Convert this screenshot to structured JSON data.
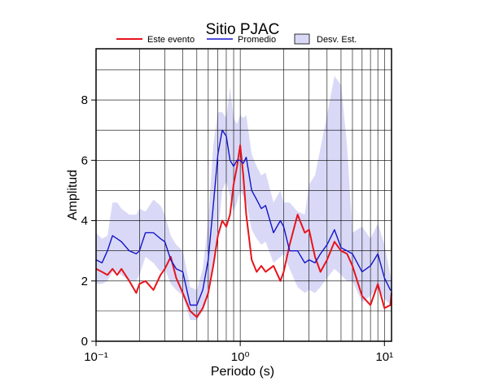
{
  "chart_data": {
    "type": "line",
    "title": "Sitio PJAC",
    "xlabel": "Periodo (s)",
    "ylabel": "Amplitud",
    "xscale": "log",
    "xlim": [
      0.1,
      11.2
    ],
    "ylim": [
      0,
      9.7
    ],
    "xticks": [
      {
        "value": 0.1,
        "label": "10⁻¹"
      },
      {
        "value": 1,
        "label": "10⁰"
      },
      {
        "value": 10,
        "label": "10¹"
      }
    ],
    "xminor": [
      0.2,
      0.3,
      0.4,
      0.5,
      0.6,
      0.7,
      0.8,
      0.9,
      2,
      3,
      4,
      5,
      6,
      7,
      8,
      9
    ],
    "yticks": [
      0,
      2,
      4,
      6,
      8
    ],
    "yminor": [
      1,
      3,
      5,
      7,
      9
    ],
    "grid": true,
    "x": [
      0.1,
      0.11,
      0.12,
      0.13,
      0.14,
      0.15,
      0.17,
      0.19,
      0.2,
      0.22,
      0.25,
      0.28,
      0.3,
      0.33,
      0.36,
      0.4,
      0.45,
      0.5,
      0.55,
      0.6,
      0.65,
      0.7,
      0.75,
      0.8,
      0.85,
      0.9,
      0.95,
      1.0,
      1.05,
      1.1,
      1.2,
      1.3,
      1.4,
      1.5,
      1.7,
      1.9,
      2.0,
      2.2,
      2.5,
      2.8,
      3.0,
      3.3,
      3.6,
      4.0,
      4.5,
      5.0,
      5.5,
      6.0,
      7.0,
      8.0,
      9.0,
      10,
      11,
      11.2
    ],
    "band": {
      "name": "Desv. Est.",
      "color": "#d9d9f7",
      "upper": [
        3.6,
        3.4,
        3.5,
        4.6,
        4.6,
        4.4,
        4.2,
        4.2,
        4.4,
        4.3,
        4.7,
        4.5,
        4.2,
        3.5,
        3.2,
        3.0,
        1.8,
        1.7,
        2.4,
        4.0,
        6.5,
        7.6,
        7.6,
        7.4,
        8.4,
        7.4,
        7.2,
        7.5,
        7.4,
        7.5,
        6.2,
        5.8,
        5.5,
        5.6,
        4.6,
        5.0,
        4.6,
        4.6,
        4.3,
        4.2,
        5.2,
        5.5,
        6.4,
        7.5,
        8.8,
        8.5,
        6.5,
        3.6,
        3.8,
        3.4,
        3.9,
        3.2,
        2.2,
        2.0
      ],
      "lower": [
        1.9,
        1.9,
        2.0,
        2.3,
        2.3,
        2.2,
        2.0,
        2.0,
        2.2,
        2.8,
        2.6,
        2.3,
        2.4,
        1.9,
        1.7,
        1.5,
        0.7,
        0.7,
        1.0,
        1.5,
        2.4,
        3.5,
        5.0,
        5.3,
        4.8,
        4.3,
        4.6,
        5.0,
        4.8,
        4.6,
        3.7,
        3.4,
        3.2,
        3.3,
        2.6,
        2.8,
        2.9,
        2.4,
        1.8,
        1.6,
        1.7,
        1.6,
        1.8,
        2.1,
        2.4,
        2.2,
        2.0,
        2.0,
        1.3,
        1.5,
        1.8,
        1.4,
        1.2,
        1.3
      ]
    },
    "series": [
      {
        "name": "Este evento",
        "color": "#e8141c",
        "values": [
          2.4,
          2.3,
          2.2,
          2.4,
          2.2,
          2.4,
          2.0,
          1.6,
          1.9,
          2.0,
          1.7,
          2.2,
          2.4,
          2.8,
          2.1,
          1.6,
          1.0,
          0.8,
          1.1,
          1.6,
          2.5,
          3.5,
          4.0,
          3.8,
          4.2,
          5.2,
          5.8,
          6.5,
          5.5,
          4.2,
          2.7,
          2.3,
          2.5,
          2.3,
          2.5,
          2.0,
          2.3,
          3.2,
          4.2,
          3.6,
          3.7,
          2.8,
          2.3,
          2.7,
          3.3,
          3.0,
          2.9,
          2.5,
          1.5,
          1.2,
          1.9,
          1.1,
          1.2,
          1.6
        ]
      },
      {
        "name": "Promedio",
        "color": "#1414c8",
        "values": [
          2.7,
          2.6,
          3.0,
          3.5,
          3.4,
          3.3,
          3.0,
          2.9,
          3.0,
          3.6,
          3.6,
          3.4,
          3.3,
          2.7,
          2.4,
          2.3,
          1.2,
          1.2,
          1.7,
          2.7,
          4.5,
          6.2,
          7.0,
          6.8,
          6.0,
          5.8,
          6.0,
          6.0,
          5.9,
          6.1,
          5.0,
          4.7,
          4.4,
          4.5,
          3.6,
          4.0,
          3.8,
          3.0,
          3.0,
          2.6,
          2.7,
          2.6,
          2.9,
          3.2,
          3.7,
          3.1,
          3.0,
          2.9,
          2.3,
          2.5,
          2.9,
          2.1,
          1.7,
          1.7
        ]
      }
    ]
  }
}
